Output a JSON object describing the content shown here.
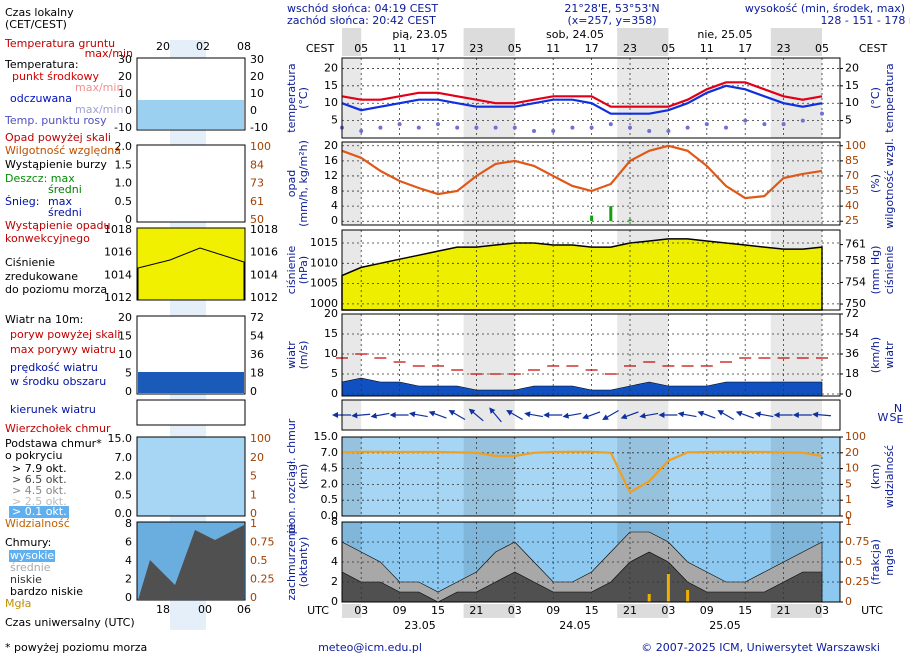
{
  "header": {
    "sunrise": "wschód słońca: 04:19 CEST",
    "sunset": "zachód słońca: 20:42 CEST",
    "coords": "21°28'E, 53°53'N",
    "grid": "(x=257, y=358)",
    "height_label": "wysokość (min, środek, max)",
    "height": "128 - 151 - 178 m"
  },
  "top_axis": {
    "label": "CEST",
    "hours": [
      "05",
      "11",
      "17",
      "23",
      "05",
      "11",
      "17",
      "23",
      "05",
      "11",
      "17",
      "23",
      "05"
    ],
    "dates": [
      "pią, 23.05",
      "sob, 24.05",
      "nie, 25.05"
    ]
  },
  "bottom_axis": {
    "label": "UTC",
    "hours": [
      "03",
      "09",
      "15",
      "21",
      "03",
      "09",
      "15",
      "21",
      "03",
      "09",
      "15",
      "21",
      "03"
    ],
    "dates": [
      "23.05",
      "24.05",
      "25.05"
    ]
  },
  "footer": {
    "email": "meteo@icm.edu.pl",
    "copyright": "© 2007-2025 ICM, Uniwersytet Warszawski"
  },
  "legend": {
    "items": [
      "Czas lokalny",
      "(CET/CEST)",
      "Temperatura gruntu",
      "max/min",
      "Temperatura:",
      "max/min",
      "max/min",
      "Opad powyżej skali",
      "Wystąpienie burzy",
      "średni",
      "Śnieg:",
      "max",
      "średni",
      "Wystąpienie opadu",
      "konwekcyjnego",
      "Ciśnienie",
      "zredukowane",
      "do poziomu morza",
      "Wiatr na 10m:",
      "poryw powyżej skali",
      "w środku obszaru",
      "kierunek wiatru",
      "Wierzchołek chmur",
      "Podstawa chmur*",
      "o pokryciu",
      "> 7.9 okt.",
      "> 6.5 okt.",
      "> 4.5 okt.",
      "> 2.5 okt.",
      "> 0.1 okt.",
      "Chmury:",
      "wysokie",
      "bardzo niskie",
      "Czas uniwersalny (UTC)",
      "* powyżej poziomu morza"
    ],
    "local_hours": [
      "20",
      "02",
      "08"
    ],
    "utc_hours": [
      "18",
      "00",
      "06"
    ],
    "mini_ticks": [
      {
        "left": [
          "30",
          "20",
          "10",
          "0",
          "-10"
        ],
        "right": [
          "30",
          "20",
          "10",
          "0",
          "-10"
        ]
      },
      {
        "left": [
          "2.0",
          "1.5",
          "1.0",
          "0.5",
          "0"
        ],
        "right": [
          "100",
          "84",
          "73",
          "61",
          "50"
        ]
      },
      {
        "left": [
          "1018",
          "1016",
          "1014",
          "1012"
        ],
        "right": [
          "1018",
          "1016",
          "1014",
          "1012"
        ]
      },
      {
        "left": [
          "20",
          "15",
          "10",
          "5",
          "0"
        ],
        "right": [
          "72",
          "54",
          "36",
          "18",
          "0"
        ]
      },
      {
        "left": [
          "15.0",
          "7.0",
          "2.0",
          "0.5",
          "0.0"
        ],
        "right": [
          "100",
          "20",
          "5",
          "1",
          "0"
        ]
      },
      {
        "left": [
          "8",
          "6",
          "4",
          "2",
          "0"
        ],
        "right": [
          "1",
          "0.75",
          "0.5",
          "0.25",
          "0"
        ]
      }
    ]
  },
  "chart_data": [
    {
      "type": "line",
      "left_title": [
        "temperatura",
        "(°C)"
      ],
      "right_title": [
        "(°C)",
        "temperatura"
      ],
      "ylim": [
        0,
        23
      ],
      "yticks": [
        5,
        10,
        15,
        20
      ],
      "y2lim": [
        0,
        23
      ],
      "y2ticks": [
        5,
        10,
        15,
        20
      ],
      "grid": true,
      "series": [
        {
          "name": "punkt środkowy",
          "color": "#e00018",
          "values": [
            12,
            11,
            11,
            12,
            13,
            13,
            12,
            11,
            10,
            10,
            11,
            12,
            12,
            12,
            9,
            9,
            9,
            9,
            11,
            14,
            16,
            16,
            14,
            12,
            11,
            12
          ]
        },
        {
          "name": "odczuwana",
          "color": "#1030e0",
          "values": [
            10,
            8,
            9,
            10,
            11,
            11,
            10,
            9,
            9,
            9,
            10,
            11,
            11,
            10,
            7,
            7,
            7,
            8,
            10,
            13,
            15,
            14,
            12,
            10,
            9,
            10
          ]
        },
        {
          "name": "Temp. punktu rosy",
          "color": "#7070d8",
          "type": "dots",
          "values": [
            3,
            2,
            3,
            4,
            3,
            4,
            3,
            3,
            3,
            3,
            2,
            2,
            3,
            3,
            4,
            3,
            2,
            2,
            3,
            4,
            3,
            5,
            4,
            4,
            5,
            7
          ]
        }
      ]
    },
    {
      "type": "line",
      "left_title": [
        "opad",
        "(mm/h, kg/m²h)"
      ],
      "right_title": [
        "(%)",
        "wilgotność wzgl."
      ],
      "ylim": [
        -1,
        21
      ],
      "yticks": [
        0,
        4,
        8,
        12,
        16,
        20
      ],
      "y2lim": [
        21.25,
        103.75
      ],
      "y2ticks": [
        25,
        40,
        55,
        70,
        85,
        100
      ],
      "grid": true,
      "series": [
        {
          "name": "Wilgotność względna",
          "color": "#e05818",
          "axis": "y2",
          "values": [
            95,
            88,
            75,
            65,
            58,
            52,
            55,
            70,
            82,
            85,
            80,
            70,
            60,
            55,
            62,
            85,
            95,
            100,
            95,
            80,
            60,
            48,
            50,
            68,
            72,
            75
          ]
        },
        {
          "name": "Deszcz: max",
          "color": "#10a010",
          "type": "bars",
          "values": [
            0,
            0,
            0,
            0,
            0,
            0,
            0,
            0,
            0,
            0,
            0,
            0,
            0,
            1.5,
            4,
            0.5,
            0,
            0,
            0,
            0,
            0,
            0,
            0,
            0,
            0,
            0
          ]
        }
      ]
    },
    {
      "type": "area",
      "left_title": [
        "ciśnienie",
        "(hPa)"
      ],
      "right_title": [
        "(mm Hg)",
        "ciśnienie"
      ],
      "ylim": [
        998.5,
        1018.2
      ],
      "yticks": [
        1000,
        1005,
        1010,
        1015
      ],
      "y2lim": [
        748.9,
        763.7
      ],
      "y2ticks": [
        750,
        754,
        758,
        761
      ],
      "grid": true,
      "series": [
        {
          "color": "#eeee00",
          "values": [
            1007,
            1009,
            1010,
            1011,
            1012,
            1013,
            1014,
            1014,
            1014.5,
            1015,
            1015,
            1014.5,
            1014.5,
            1014,
            1014,
            1015,
            1015.5,
            1016,
            1016,
            1015.5,
            1015,
            1014.5,
            1014,
            1013.5,
            1013.5,
            1014
          ]
        }
      ]
    },
    {
      "type": "area",
      "left_title": [
        "wiatr",
        "(m/s)"
      ],
      "right_title": [
        "(km/h)",
        "wiatr"
      ],
      "ylim": [
        -0.5,
        20
      ],
      "yticks": [
        0,
        5,
        10,
        15,
        20
      ],
      "y2lim": [
        -1.8,
        72
      ],
      "y2ticks": [
        0,
        18,
        36,
        54,
        72
      ],
      "grid": true,
      "series": [
        {
          "name": "prędkość wiatru",
          "color": "#1050c0",
          "values": [
            3,
            4,
            3,
            3,
            2,
            2,
            2,
            1,
            1,
            1,
            2,
            2,
            2,
            1,
            1,
            2,
            3,
            2,
            2,
            2,
            3,
            3,
            3,
            3,
            3,
            3
          ]
        },
        {
          "name": "max porywy wiatru",
          "color": "#c00000",
          "type": "dashes",
          "values": [
            9,
            10,
            9,
            8,
            7,
            7,
            6,
            5,
            5,
            5,
            6,
            7,
            7,
            6,
            5,
            7,
            8,
            7,
            7,
            7,
            8,
            9,
            9,
            9,
            9,
            9
          ]
        }
      ]
    },
    {
      "type": "arrows",
      "compass": [
        "W",
        "S",
        "N",
        "E"
      ],
      "series": [
        {
          "color": "#1030a0",
          "values": [
            270,
            265,
            260,
            270,
            280,
            290,
            300,
            310,
            320,
            300,
            280,
            270,
            260,
            250,
            240,
            250,
            260,
            270,
            280,
            290,
            300,
            290,
            280,
            270,
            270,
            275
          ]
        }
      ]
    },
    {
      "type": "line",
      "left_title": [
        "pion. rozciągł. chmur",
        "(km)"
      ],
      "right_title": [
        "(km)",
        "widzialność"
      ],
      "yscale": "piecewise",
      "ylim": [
        0,
        15
      ],
      "yticks": [
        {
          "value": 0,
          "label": "0.0"
        },
        0.5,
        {
          "value": 2,
          "label": "2.0"
        },
        4.5,
        {
          "value": 7,
          "label": "7.0"
        },
        {
          "value": 15,
          "label": "15.0"
        }
      ],
      "y2lim": [
        0,
        100
      ],
      "y2ticks": [
        0,
        1,
        5,
        10,
        20,
        100
      ],
      "grid": true,
      "series": [
        {
          "name": "Widzialność",
          "color": "#f0a020",
          "axis": "y2",
          "values": [
            22,
            25,
            25,
            24,
            24,
            24,
            22,
            20,
            18,
            18,
            20,
            24,
            25,
            25,
            20,
            3,
            6,
            15,
            22,
            24,
            25,
            25,
            24,
            22,
            20,
            18
          ]
        }
      ]
    },
    {
      "type": "area",
      "left_title": [
        "zachmurzenie",
        "(oktanty)"
      ],
      "right_title": [
        "(frakcja)",
        "mgła"
      ],
      "ylim": [
        0,
        8
      ],
      "yticks": [
        0,
        2,
        4,
        6,
        8
      ],
      "y2lim": [
        0,
        1
      ],
      "y2ticks": [
        0,
        0.25,
        0.5,
        0.75,
        1
      ],
      "grid": true,
      "series": [
        {
          "name": "średnie",
          "color": "#a8a8a8",
          "values": [
            6,
            5,
            4,
            2,
            2,
            1,
            2,
            3,
            5,
            6,
            4,
            2,
            2,
            3,
            5,
            7,
            7,
            6,
            4,
            3,
            2,
            2,
            3,
            4,
            5,
            6
          ]
        },
        {
          "name": "niskie",
          "color": "#505050",
          "values": [
            3,
            2,
            2,
            1,
            1,
            0,
            1,
            1,
            2,
            3,
            2,
            1,
            1,
            1,
            2,
            4,
            5,
            4,
            2,
            1,
            1,
            1,
            1,
            2,
            3,
            3
          ]
        },
        {
          "name": "Mgła",
          "color": "#f0b000",
          "type": "bars",
          "axis": "y2",
          "values": [
            0,
            0,
            0,
            0,
            0,
            0,
            0,
            0,
            0,
            0,
            0,
            0,
            0,
            0,
            0,
            0,
            0.1,
            0.35,
            0.15,
            0,
            0,
            0,
            0,
            0,
            0,
            0
          ]
        }
      ]
    }
  ]
}
